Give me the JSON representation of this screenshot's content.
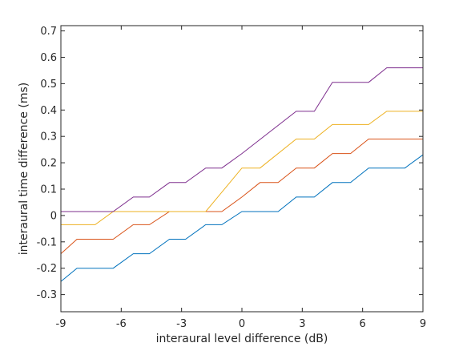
{
  "chart_data": {
    "type": "line",
    "title": "",
    "xlabel": "interaural level difference (dB)",
    "ylabel": "interaural time difference (ms)",
    "xlim": [
      -9,
      9
    ],
    "ylim": [
      -0.365,
      0.72
    ],
    "xticks": [
      -9,
      -6,
      -3,
      0,
      3,
      6,
      9
    ],
    "yticks": [
      -0.3,
      -0.2,
      -0.1,
      0,
      0.1,
      0.2,
      0.3,
      0.4,
      0.5,
      0.6,
      0.7
    ],
    "xtick_labels": [
      "-9",
      "-6",
      "-3",
      "0",
      "3",
      "6",
      "9"
    ],
    "ytick_labels": [
      "-0.3",
      "-0.2",
      "-0.1",
      "0",
      "0.1",
      "0.2",
      "0.3",
      "0.4",
      "0.5",
      "0.6",
      "0.7"
    ],
    "grid": false,
    "series": [
      {
        "color": "#0072BD",
        "x": [
          -9,
          -8.2,
          -6.4,
          -5.4,
          -4.6,
          -3.6,
          -2.8,
          -1.8,
          -1.0,
          0.0,
          1.8,
          2.7,
          3.6,
          4.5,
          5.4,
          6.3,
          8.1,
          9.0
        ],
        "y": [
          -0.25,
          -0.2,
          -0.2,
          -0.145,
          -0.145,
          -0.09,
          -0.09,
          -0.035,
          -0.035,
          0.015,
          0.015,
          0.07,
          0.07,
          0.125,
          0.125,
          0.18,
          0.18,
          0.23
        ]
      },
      {
        "color": "#D95319",
        "x": [
          -9,
          -8.2,
          -6.4,
          -5.4,
          -4.6,
          -3.6,
          -2.8,
          -1.8,
          -1.0,
          0.0,
          0.9,
          1.8,
          2.7,
          3.6,
          4.5,
          5.4,
          6.3,
          9.0
        ],
        "y": [
          -0.145,
          -0.09,
          -0.09,
          -0.035,
          -0.035,
          0.015,
          0.015,
          0.015,
          0.015,
          0.07,
          0.125,
          0.125,
          0.18,
          0.18,
          0.235,
          0.235,
          0.29,
          0.29
        ]
      },
      {
        "color": "#EDB120",
        "x": [
          -9,
          -7.3,
          -6.4,
          -1.8,
          0.0,
          0.9,
          2.7,
          3.6,
          4.5,
          6.3,
          7.2,
          9.0
        ],
        "y": [
          -0.035,
          -0.035,
          0.015,
          0.015,
          0.18,
          0.18,
          0.29,
          0.29,
          0.345,
          0.345,
          0.395,
          0.395
        ]
      },
      {
        "color": "#7E2F8E",
        "x": [
          -9,
          -6.4,
          -5.4,
          -4.6,
          -3.6,
          -2.8,
          -1.8,
          -1.0,
          0.0,
          2.7,
          3.6,
          4.5,
          6.3,
          7.2,
          9.0
        ],
        "y": [
          0.015,
          0.015,
          0.07,
          0.07,
          0.125,
          0.125,
          0.18,
          0.18,
          0.235,
          0.395,
          0.395,
          0.505,
          0.505,
          0.56,
          0.56
        ]
      }
    ]
  }
}
